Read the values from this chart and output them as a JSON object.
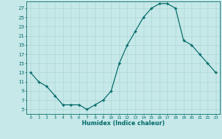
{
  "x": [
    0,
    1,
    2,
    3,
    4,
    5,
    6,
    7,
    8,
    9,
    10,
    11,
    12,
    13,
    14,
    15,
    16,
    17,
    18,
    19,
    20,
    21,
    22,
    23
  ],
  "y": [
    13,
    11,
    10,
    8,
    6,
    6,
    6,
    5,
    6,
    7,
    9,
    15,
    19,
    22,
    25,
    27,
    28,
    28,
    27,
    20,
    19,
    17,
    15,
    13
  ],
  "xlabel": "Humidex (Indice chaleur)",
  "bg_color": "#c6e8e8",
  "line_color": "#006868",
  "marker_color": "#006868",
  "grid_color": "#b0d8d8",
  "yticks": [
    5,
    7,
    9,
    11,
    13,
    15,
    17,
    19,
    21,
    23,
    25,
    27
  ],
  "ylim": [
    4.0,
    28.5
  ],
  "xlim": [
    -0.5,
    23.5
  ],
  "xticks": [
    0,
    1,
    2,
    3,
    4,
    5,
    6,
    7,
    8,
    9,
    10,
    11,
    12,
    13,
    14,
    15,
    16,
    17,
    18,
    19,
    20,
    21,
    22,
    23
  ],
  "xtick_labels": [
    "0",
    "1",
    "2",
    "3",
    "4",
    "5",
    "6",
    "7",
    "8",
    "9",
    "10",
    "11",
    "12",
    "13",
    "14",
    "15",
    "16",
    "17",
    "18",
    "19",
    "20",
    "21",
    "22",
    "23"
  ]
}
